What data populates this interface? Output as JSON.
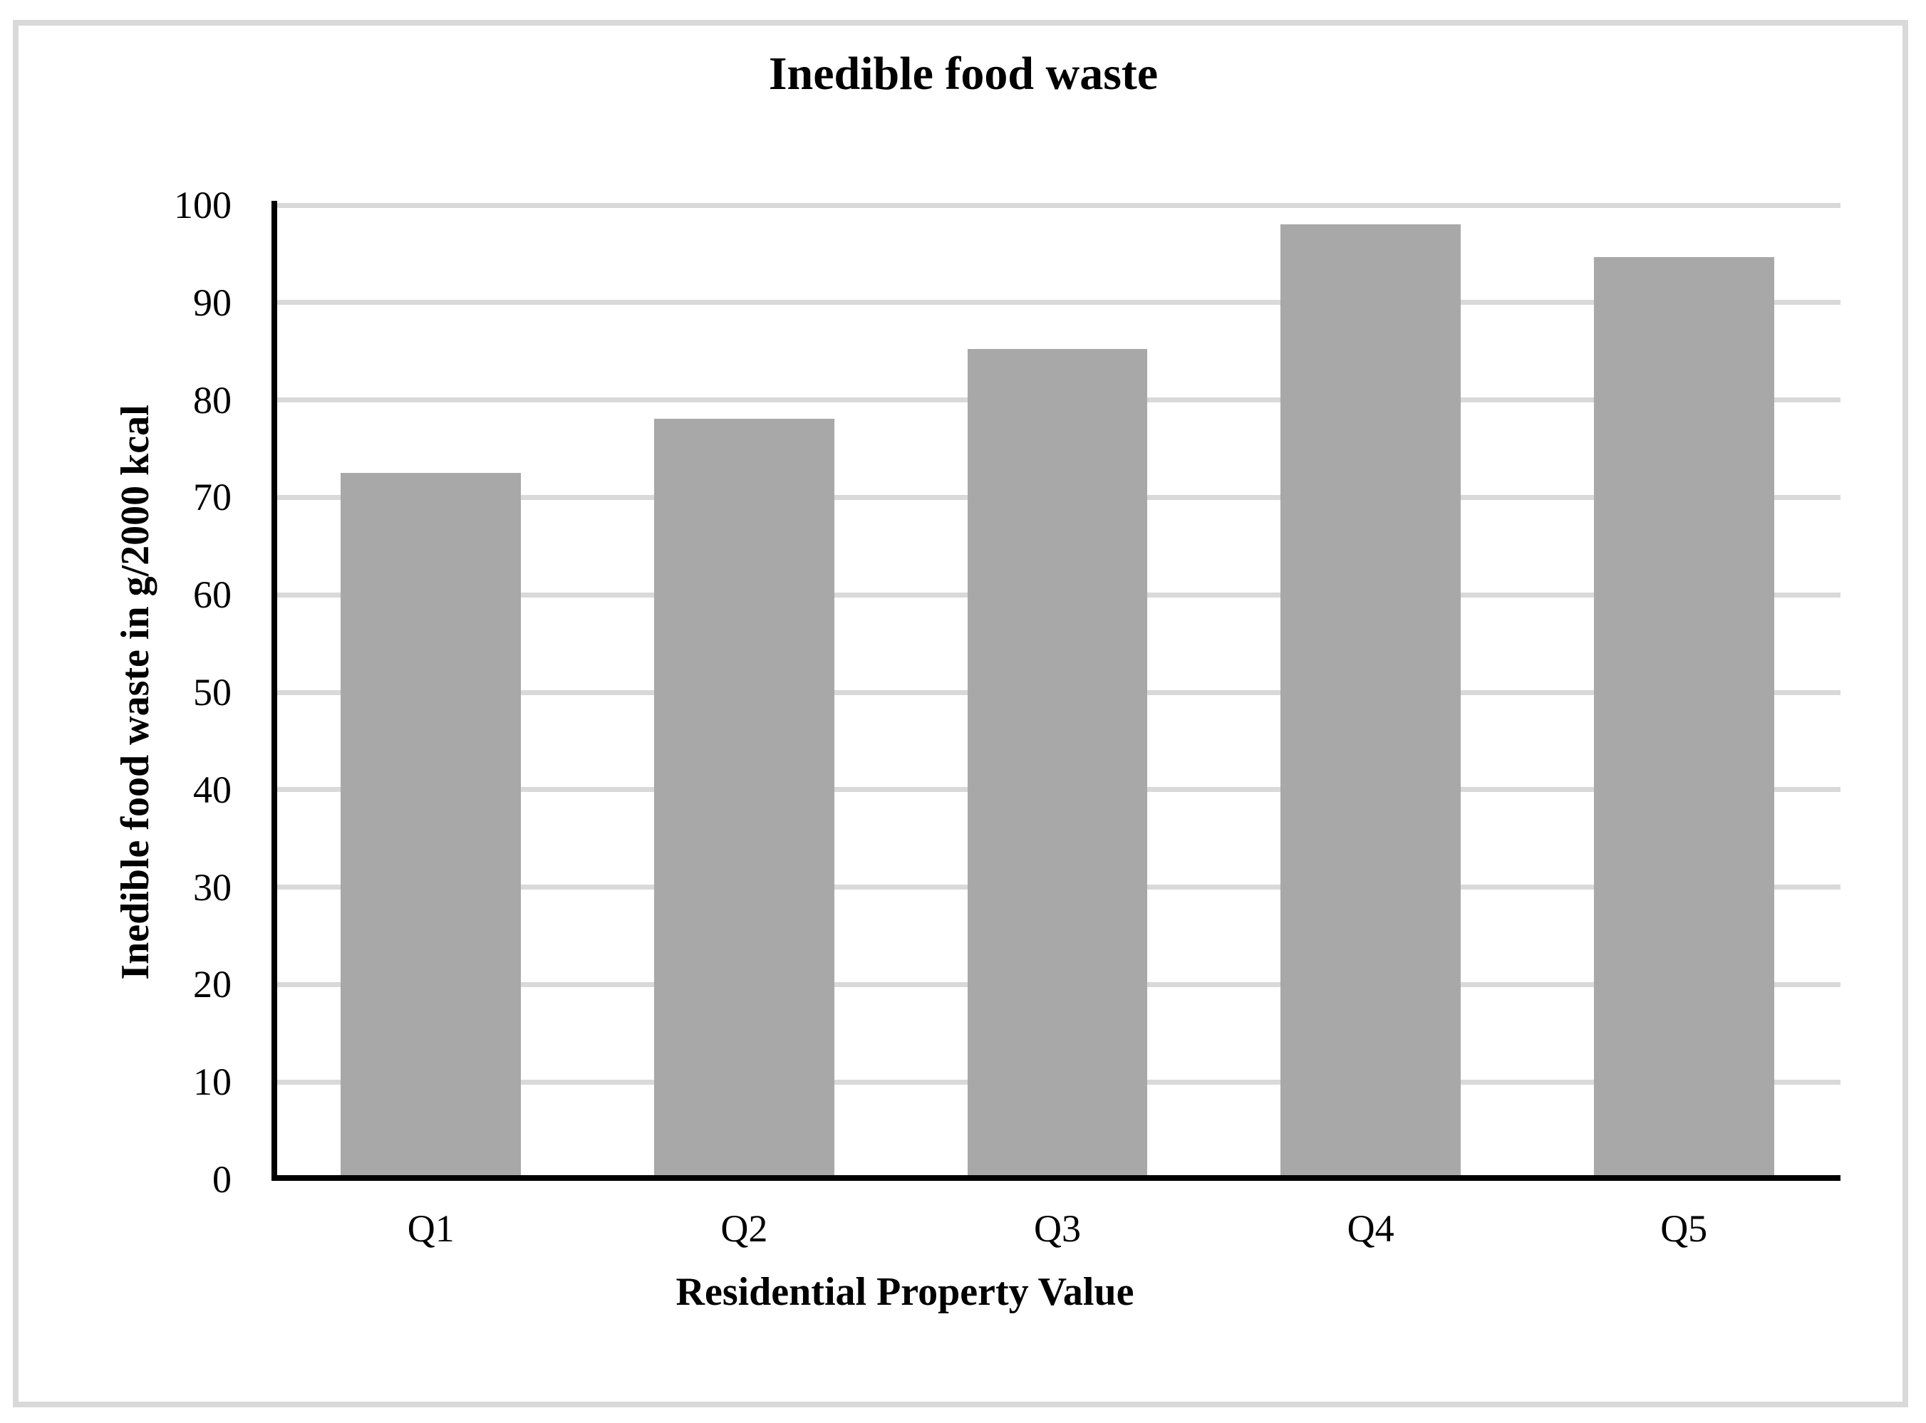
{
  "chart_data": {
    "type": "bar",
    "title": "Inedible food waste",
    "xlabel": "Residential Property Value",
    "ylabel": "Inedible food waste in g/2000 kcal",
    "categories": [
      "Q1",
      "Q2",
      "Q3",
      "Q4",
      "Q5"
    ],
    "values": [
      72.5,
      78.1,
      85.2,
      98,
      94.7
    ],
    "ylim": [
      0,
      100
    ],
    "ytick_step": 10,
    "yticks": [
      0,
      10,
      20,
      30,
      40,
      50,
      60,
      70,
      80,
      90,
      100
    ],
    "grid": "horizontal",
    "legend": "none",
    "bar_gap_fraction": 0.425,
    "bar_color": "#a8a8a8",
    "gridline_color": "#d9d9d9",
    "axis_color": "#000000",
    "border_color": "#d9d9d9",
    "background_color": "#ffffff",
    "text_color": "#000000"
  }
}
